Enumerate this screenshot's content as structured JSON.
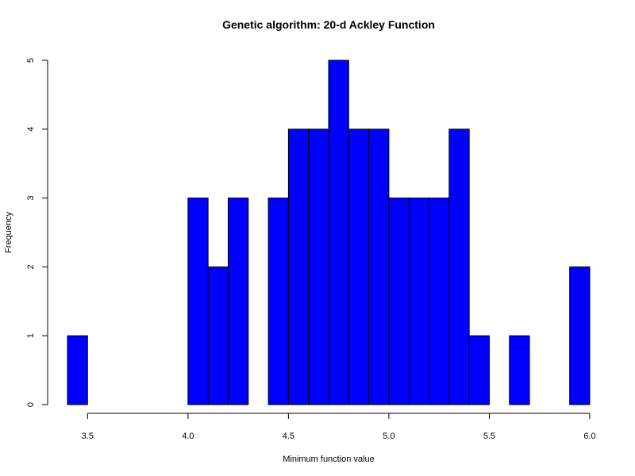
{
  "chart_data": {
    "type": "bar",
    "title": "Genetic algorithm: 20-d Ackley Function",
    "xlabel": "Minimum function value",
    "ylabel": "Frequency",
    "bin_width": 0.1,
    "bins": [
      {
        "start": 3.4,
        "end": 3.5,
        "count": 1
      },
      {
        "start": 3.5,
        "end": 3.6,
        "count": 0
      },
      {
        "start": 3.6,
        "end": 3.7,
        "count": 0
      },
      {
        "start": 3.7,
        "end": 3.8,
        "count": 0
      },
      {
        "start": 3.8,
        "end": 3.9,
        "count": 0
      },
      {
        "start": 3.9,
        "end": 4.0,
        "count": 0
      },
      {
        "start": 4.0,
        "end": 4.1,
        "count": 3
      },
      {
        "start": 4.1,
        "end": 4.2,
        "count": 2
      },
      {
        "start": 4.2,
        "end": 4.3,
        "count": 3
      },
      {
        "start": 4.3,
        "end": 4.4,
        "count": 0
      },
      {
        "start": 4.4,
        "end": 4.5,
        "count": 3
      },
      {
        "start": 4.5,
        "end": 4.6,
        "count": 4
      },
      {
        "start": 4.6,
        "end": 4.7,
        "count": 4
      },
      {
        "start": 4.7,
        "end": 4.8,
        "count": 5
      },
      {
        "start": 4.8,
        "end": 4.9,
        "count": 4
      },
      {
        "start": 4.9,
        "end": 5.0,
        "count": 4
      },
      {
        "start": 5.0,
        "end": 5.1,
        "count": 3
      },
      {
        "start": 5.1,
        "end": 5.2,
        "count": 3
      },
      {
        "start": 5.2,
        "end": 5.3,
        "count": 3
      },
      {
        "start": 5.3,
        "end": 5.4,
        "count": 4
      },
      {
        "start": 5.4,
        "end": 5.5,
        "count": 1
      },
      {
        "start": 5.5,
        "end": 5.6,
        "count": 0
      },
      {
        "start": 5.6,
        "end": 5.7,
        "count": 1
      },
      {
        "start": 5.7,
        "end": 5.8,
        "count": 0
      },
      {
        "start": 5.8,
        "end": 5.9,
        "count": 0
      },
      {
        "start": 5.9,
        "end": 6.0,
        "count": 2
      }
    ],
    "xlim": [
      3.4,
      6.0
    ],
    "ylim": [
      0,
      5
    ],
    "x_ticks": [
      "3.5",
      "4.0",
      "4.5",
      "5.0",
      "5.5",
      "6.0"
    ],
    "y_ticks": [
      "0",
      "1",
      "2",
      "3",
      "4",
      "5"
    ],
    "grid": false,
    "legend": "none",
    "colors": {
      "bar_fill": "#0000ff",
      "bar_stroke": "#000000"
    }
  }
}
